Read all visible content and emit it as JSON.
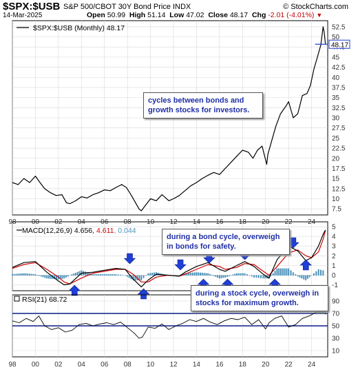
{
  "header": {
    "symbol": "$SPX:$USB",
    "name": "S&P 500/CBOT 30Y Bond Price INDX",
    "brand": "© StockCharts.com",
    "date": "14-Mar-2025",
    "open_label": "Open",
    "open": "50.99",
    "high_label": "High",
    "high": "51.14",
    "low_label": "Low",
    "low": "47.02",
    "close_label": "Close",
    "close": "48.17",
    "chg_label": "Chg",
    "chg": "-2.01 (-4.01%)"
  },
  "colors": {
    "price": "#000000",
    "macd": "#000000",
    "signal": "#d00000",
    "hist": "#4a90b8",
    "rsi": "#000000",
    "rsi_band": "#0a1a8a",
    "arrow": "#1f3fd6",
    "ann_text": "#1f2fa6",
    "last_marker": "#1f3fd6",
    "rsi_fill": "#4f7f4f"
  },
  "annotations": {
    "bond_stock_cycles": "cycles between bonds and growth stocks for investors.",
    "bond_cycle": "during a bond cycle, overweigh in bonds for safety.",
    "stock_cycle": "during a stock cycle, overweigh in stocks for maximum growth."
  },
  "chart_data": [
    {
      "type": "line",
      "panel": "price",
      "legend": "$SPX:$USB (Monthly) 48.17",
      "x_ticks": [
        "98",
        "00",
        "02",
        "04",
        "06",
        "08",
        "10",
        "12",
        "14",
        "16",
        "18",
        "20",
        "22",
        "24"
      ],
      "x_tick_years": [
        1998,
        2000,
        2002,
        2004,
        2006,
        2008,
        2010,
        2012,
        2014,
        2016,
        2018,
        2020,
        2022,
        2024
      ],
      "xlim": [
        1998,
        2025.4
      ],
      "y_ticks": [
        7.5,
        10,
        12.5,
        15,
        17.5,
        20,
        22.5,
        25,
        27.5,
        30,
        32.5,
        35,
        37.5,
        40,
        42.5,
        45,
        47.5,
        50,
        52.5
      ],
      "ylim": [
        6,
        54
      ],
      "last_value": 48.17,
      "last_value_label": "48.17",
      "series": [
        {
          "x": [
            1998.0,
            1998.5,
            1999.0,
            1999.5,
            2000.0,
            2000.4,
            2000.8,
            2001.3,
            2001.8,
            2002.3,
            2002.7,
            2003.0,
            2003.5,
            2004.0,
            2004.5,
            2005.0,
            2005.5,
            2006.0,
            2006.5,
            2007.0,
            2007.5,
            2007.9,
            2008.3,
            2008.7,
            2009.0,
            2009.2,
            2009.6,
            2010.0,
            2010.5,
            2011.0,
            2011.6,
            2012.0,
            2012.5,
            2013.0,
            2013.5,
            2014.0,
            2014.5,
            2015.0,
            2015.5,
            2016.0,
            2016.5,
            2017.0,
            2017.5,
            2018.0,
            2018.5,
            2018.9,
            2019.3,
            2019.7,
            2020.1,
            2020.2,
            2020.5,
            2020.9,
            2021.3,
            2021.8,
            2022.0,
            2022.4,
            2022.8,
            2023.2,
            2023.6,
            2023.9,
            2024.2,
            2024.5,
            2024.8,
            2025.0,
            2025.1,
            2025.2
          ],
          "y": [
            14.0,
            13.5,
            15.0,
            14.0,
            15.6,
            14.0,
            12.5,
            11.5,
            10.8,
            11.0,
            9.0,
            8.8,
            9.5,
            10.5,
            10.2,
            11.0,
            11.5,
            12.2,
            12.0,
            12.8,
            13.5,
            12.8,
            11.0,
            9.0,
            7.5,
            7.0,
            8.5,
            10.0,
            9.5,
            11.0,
            9.5,
            10.0,
            10.8,
            12.0,
            13.2,
            14.0,
            15.0,
            15.8,
            16.5,
            16.0,
            17.5,
            19.0,
            20.5,
            22.0,
            21.5,
            20.0,
            22.0,
            23.0,
            18.5,
            21.0,
            24.0,
            28.0,
            31.0,
            33.0,
            34.0,
            30.0,
            31.0,
            35.5,
            36.0,
            38.0,
            42.0,
            45.0,
            48.0,
            52.5,
            51.0,
            48.17
          ]
        }
      ]
    },
    {
      "type": "line",
      "panel": "macd",
      "legend_prefix": "MACD(12,26,9)",
      "legend_macd": "4.656",
      "legend_signal": "4.611",
      "legend_hist": "0.044",
      "y_ticks": [
        -1,
        0,
        1,
        2,
        3,
        4,
        5
      ],
      "ylim": [
        -1.6,
        5.5
      ],
      "x": [
        1998.0,
        1999.0,
        2000.0,
        2001.0,
        2002.0,
        2002.5,
        2003.0,
        2004.0,
        2005.0,
        2006.0,
        2007.0,
        2007.8,
        2008.5,
        2009.2,
        2009.8,
        2010.5,
        2011.5,
        2012.5,
        2013.0,
        2014.0,
        2015.0,
        2016.0,
        2016.5,
        2017.5,
        2018.2,
        2019.0,
        2019.8,
        2020.3,
        2021.0,
        2022.0,
        2022.8,
        2023.5,
        2024.0,
        2024.6,
        2025.0,
        2025.2
      ],
      "series": [
        {
          "name": "MACD",
          "values": [
            0.8,
            1.3,
            1.4,
            0.3,
            -0.6,
            -1.0,
            -0.9,
            0.2,
            0.3,
            0.5,
            0.7,
            0.6,
            -0.4,
            -1.2,
            -0.5,
            0.1,
            0.0,
            -0.1,
            0.3,
            0.9,
            1.3,
            0.6,
            0.4,
            1.0,
            1.4,
            0.9,
            0.1,
            -0.3,
            1.6,
            3.0,
            2.5,
            1.5,
            1.8,
            3.0,
            4.2,
            4.656
          ]
        },
        {
          "name": "Signal",
          "values": [
            0.7,
            1.1,
            1.3,
            0.6,
            -0.2,
            -0.7,
            -0.9,
            -0.3,
            0.2,
            0.4,
            0.6,
            0.6,
            0.1,
            -0.7,
            -0.7,
            -0.2,
            0.0,
            -0.1,
            0.1,
            0.6,
            1.1,
            0.9,
            0.6,
            0.8,
            1.2,
            1.1,
            0.4,
            0.0,
            0.9,
            2.3,
            2.6,
            2.0,
            1.8,
            2.4,
            3.7,
            4.611
          ]
        }
      ]
    },
    {
      "type": "line",
      "panel": "rsi",
      "legend_prefix": "RSI(21)",
      "legend_value": "68.72",
      "y_ticks": [
        10,
        30,
        50,
        70,
        90
      ],
      "ylim": [
        0,
        100
      ],
      "band_levels": [
        50,
        70
      ],
      "series": [
        {
          "x": [
            1998.0,
            1998.6,
            1999.2,
            1999.8,
            2000.3,
            2000.8,
            2001.4,
            2002.0,
            2002.6,
            2003.2,
            2003.8,
            2004.4,
            2005.0,
            2005.6,
            2006.2,
            2006.8,
            2007.4,
            2008.0,
            2008.6,
            2009.0,
            2009.3,
            2009.8,
            2010.4,
            2011.0,
            2011.6,
            2012.2,
            2012.8,
            2013.4,
            2014.0,
            2014.6,
            2015.2,
            2015.8,
            2016.4,
            2017.0,
            2017.6,
            2018.2,
            2018.8,
            2019.4,
            2020.0,
            2020.3,
            2020.8,
            2021.4,
            2022.0,
            2022.6,
            2023.2,
            2023.8,
            2024.4,
            2025.0,
            2025.2
          ],
          "y": [
            58,
            55,
            62,
            57,
            66,
            50,
            44,
            47,
            40,
            43,
            52,
            54,
            50,
            53,
            55,
            52,
            56,
            47,
            38,
            30,
            32,
            48,
            46,
            53,
            44,
            50,
            54,
            60,
            57,
            62,
            56,
            52,
            58,
            62,
            60,
            64,
            52,
            60,
            45,
            55,
            62,
            66,
            48,
            52,
            62,
            66,
            72,
            86,
            68.72
          ]
        }
      ]
    }
  ]
}
